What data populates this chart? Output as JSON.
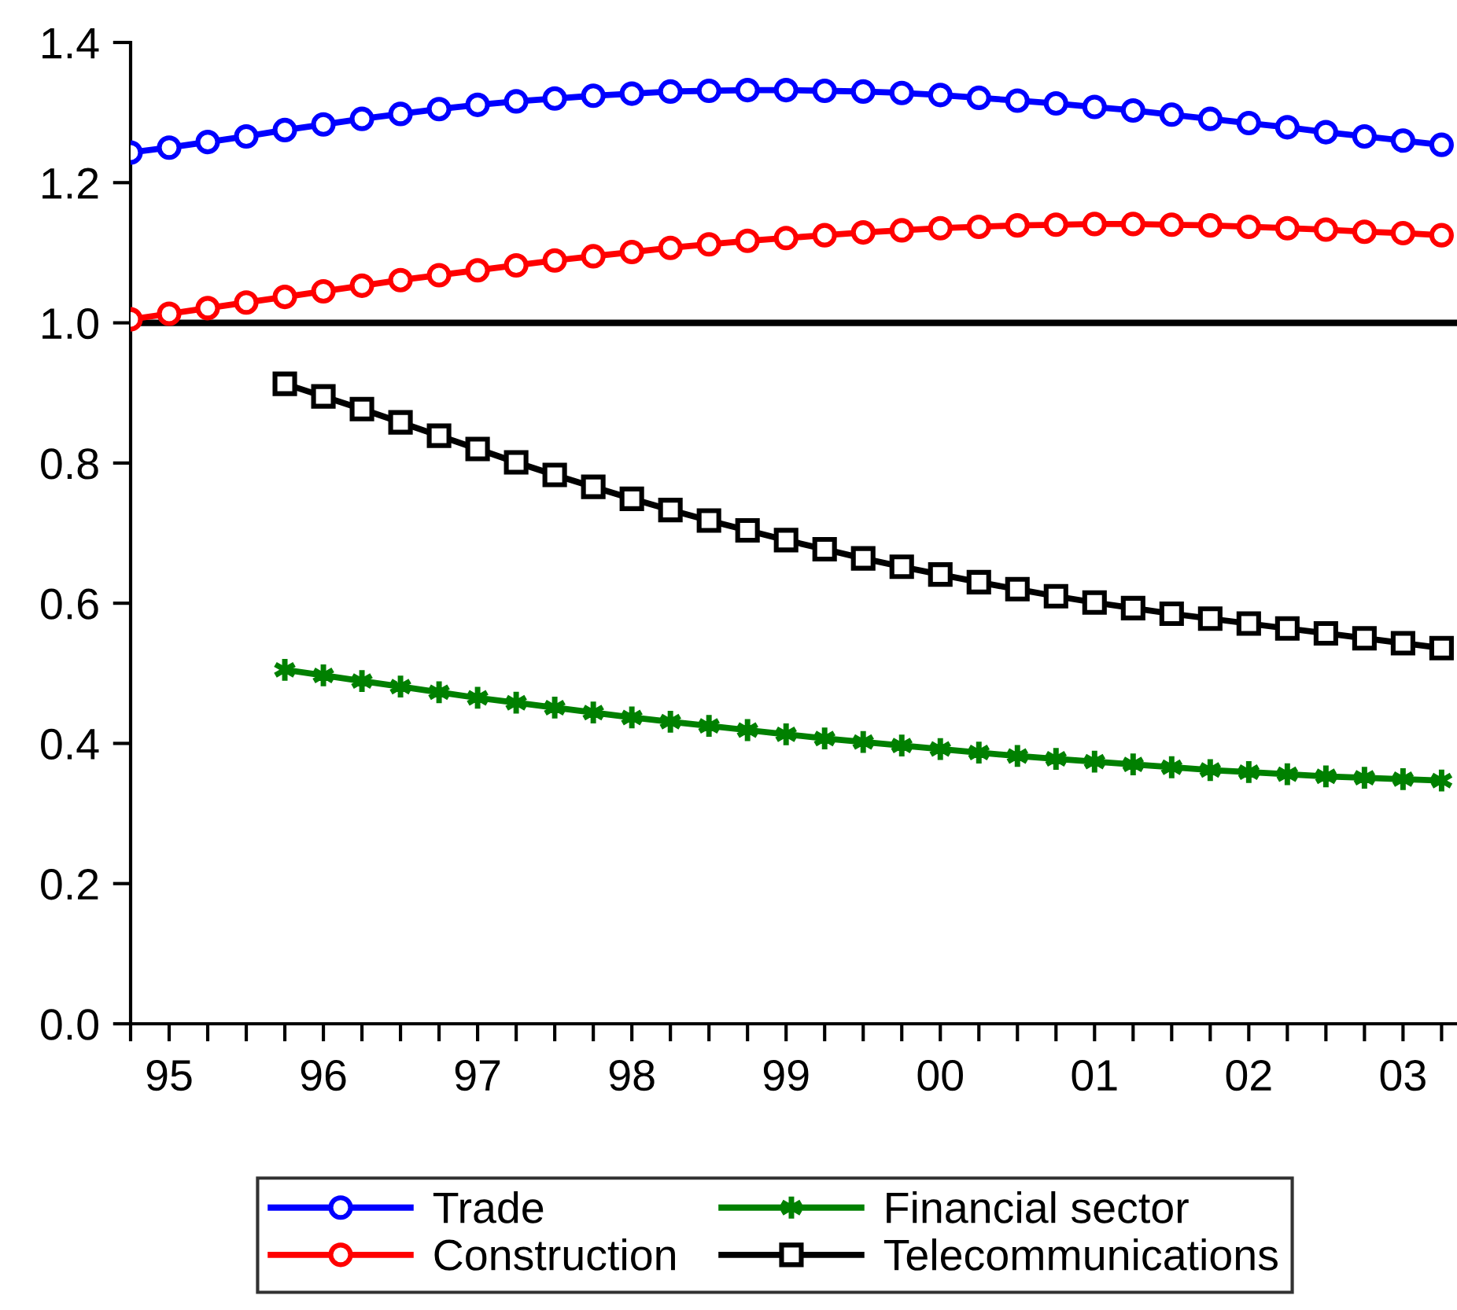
{
  "chart_data": {
    "type": "line",
    "ylim": [
      0,
      1.4
    ],
    "yticks": [
      {
        "value": 0,
        "label": "0.0"
      },
      {
        "value": 0.2,
        "label": "0.2"
      },
      {
        "value": 0.4,
        "label": "0.4"
      },
      {
        "value": 0.6,
        "label": "0.6"
      },
      {
        "value": 0.8,
        "label": "0.8"
      },
      {
        "value": 1.0,
        "label": "1.0"
      },
      {
        "value": 1.2,
        "label": "1.2"
      },
      {
        "value": 1.4,
        "label": "1.4"
      }
    ],
    "categories": [
      null,
      "95",
      null,
      null,
      null,
      "96",
      null,
      null,
      null,
      "97",
      null,
      null,
      null,
      "98",
      null,
      null,
      null,
      "99",
      null,
      null,
      null,
      "00",
      null,
      null,
      null,
      "01",
      null,
      null,
      null,
      "02",
      null,
      null,
      null,
      "03",
      null
    ],
    "grid": false,
    "legend": "bottom",
    "line_style": "solid",
    "ref_lines": [
      {
        "axis": "y",
        "value": 1.0,
        "color": "#000000"
      }
    ],
    "series": [
      {
        "name": "Trade",
        "color": "#0000ff",
        "marker": "circle",
        "values": [
          1.243,
          1.25,
          1.258,
          1.266,
          1.275,
          1.283,
          1.291,
          1.298,
          1.305,
          1.311,
          1.316,
          1.32,
          1.324,
          1.327,
          1.33,
          1.331,
          1.332,
          1.332,
          1.331,
          1.33,
          1.328,
          1.325,
          1.321,
          1.317,
          1.313,
          1.308,
          1.303,
          1.297,
          1.291,
          1.285,
          1.279,
          1.272,
          1.266,
          1.26,
          1.254
        ]
      },
      {
        "name": "Construction",
        "color": "#ff0000",
        "marker": "circle",
        "values": [
          1.005,
          1.013,
          1.021,
          1.029,
          1.037,
          1.045,
          1.053,
          1.061,
          1.068,
          1.075,
          1.082,
          1.089,
          1.095,
          1.101,
          1.107,
          1.112,
          1.117,
          1.121,
          1.125,
          1.129,
          1.132,
          1.135,
          1.137,
          1.139,
          1.14,
          1.141,
          1.141,
          1.14,
          1.139,
          1.137,
          1.135,
          1.133,
          1.13,
          1.128,
          1.125
        ]
      },
      {
        "name": "Financial sector",
        "color": "#008000",
        "marker": "cross",
        "values": [
          null,
          null,
          null,
          null,
          0.505,
          0.497,
          0.489,
          0.481,
          0.473,
          0.465,
          0.458,
          0.451,
          0.444,
          0.437,
          0.431,
          0.425,
          0.419,
          0.413,
          0.407,
          0.402,
          0.397,
          0.392,
          0.387,
          0.382,
          0.378,
          0.374,
          0.37,
          0.366,
          0.362,
          0.359,
          0.356,
          0.353,
          0.351,
          0.349,
          0.347
        ]
      },
      {
        "name": "Telecommunications",
        "color": "#000000",
        "marker": "square",
        "values": [
          null,
          null,
          null,
          null,
          0.913,
          0.895,
          0.877,
          0.858,
          0.839,
          0.82,
          0.801,
          0.783,
          0.766,
          0.749,
          0.733,
          0.718,
          0.704,
          0.69,
          0.677,
          0.664,
          0.652,
          0.641,
          0.63,
          0.62,
          0.61,
          0.601,
          0.593,
          0.585,
          0.578,
          0.571,
          0.564,
          0.557,
          0.55,
          0.543,
          0.536
        ]
      }
    ]
  }
}
